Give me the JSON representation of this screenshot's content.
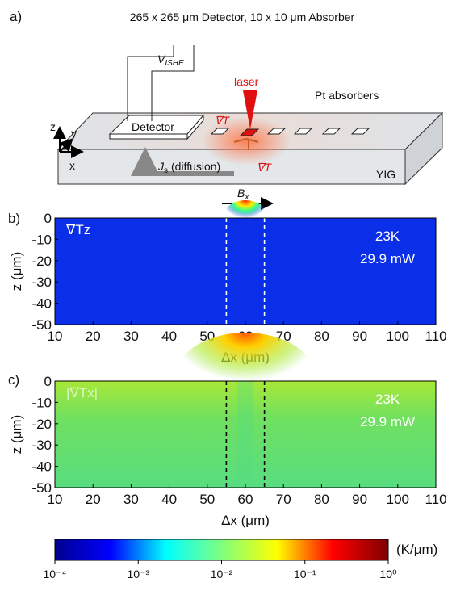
{
  "figure": {
    "panel_labels": [
      "a)",
      "b)",
      "c)"
    ]
  },
  "schematic": {
    "title": "265 x 265 μm Detector, 10 x 10 μm Absorber",
    "v_symbol": "V",
    "v_sub": "ISHE",
    "detector": "Detector",
    "laser": "laser",
    "absorbers": "Pt absorbers",
    "grad_top": "∇T",
    "grad_bottom": "∇T",
    "j_symbol": "J",
    "j_sub": "s",
    "j_text": "(diffusion)",
    "yig": "YIG",
    "b_symbol": "B",
    "b_sub": "x",
    "axis_z": "z",
    "axis_y": "y",
    "axis_x": "x"
  },
  "chart_data": [
    {
      "type": "heatmap",
      "xlabel": "Δx (μm)",
      "ylabel": "z (μm)",
      "xlim": [
        10,
        110
      ],
      "xticks": [
        10,
        20,
        30,
        40,
        50,
        60,
        70,
        80,
        90,
        100,
        110
      ],
      "ylim": [
        -50,
        0
      ],
      "yticks": [
        0,
        -10,
        -20,
        -30,
        -40,
        -50
      ],
      "markers": [
        55,
        65
      ],
      "marker_color": "#ffffff",
      "annotations": [
        "∇Tz",
        "23K",
        "29.9 mW"
      ]
    },
    {
      "type": "heatmap",
      "xlabel": "Δx (μm)",
      "ylabel": "z (μm)",
      "xlim": [
        10,
        110
      ],
      "xticks": [
        10,
        20,
        30,
        40,
        50,
        60,
        70,
        80,
        90,
        100,
        110
      ],
      "ylim": [
        -50,
        0
      ],
      "yticks": [
        0,
        -10,
        -20,
        -30,
        -40,
        -50
      ],
      "markers": [
        55,
        65
      ],
      "marker_color": "#000000",
      "annotations": [
        "|∇Tx|",
        "23K",
        "29.9 mW"
      ]
    },
    {
      "type": "colorbar",
      "scale": "log",
      "unit": "(K/μm)",
      "xlim": [
        0.0001,
        1
      ],
      "xticks": [
        {
          "value": 0.0001,
          "label": "10⁻⁴"
        },
        {
          "value": 0.001,
          "label": "10⁻³"
        },
        {
          "value": 0.01,
          "label": "10⁻²"
        },
        {
          "value": 0.1,
          "label": "10⁻¹"
        },
        {
          "value": 1,
          "label": "10⁰"
        }
      ],
      "colors": [
        "#00008f",
        "#0000ff",
        "#00ffff",
        "#7fff7f",
        "#ffff00",
        "#ff0000",
        "#800000"
      ]
    }
  ]
}
